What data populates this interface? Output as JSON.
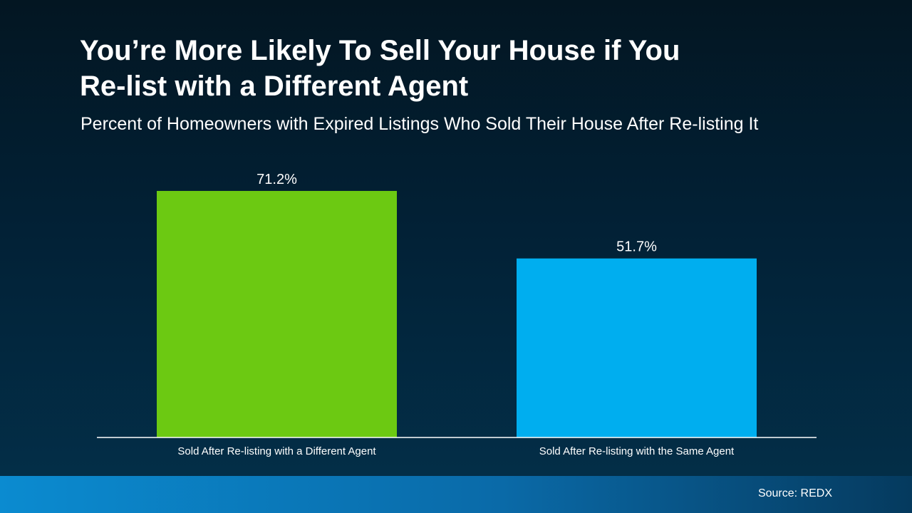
{
  "title_line1": "You’re More Likely To Sell Your House if You",
  "title_line2": "Re-list with a Different Agent",
  "subtitle": "Percent of Homeowners with Expired Listings Who Sold Their House After Re-listing It",
  "source": "Source: REDX",
  "colors": {
    "background_top": "#031622",
    "background_bottom": "#03304a",
    "footer_left": "#0b8bd0",
    "footer_right": "#053a5e",
    "axis": "#ffffff"
  },
  "chart_data": {
    "type": "bar",
    "categories": [
      "Sold After Re-listing with a Different Agent",
      "Sold After Re-listing with the Same Agent"
    ],
    "values": [
      71.2,
      51.7
    ],
    "value_labels": [
      "71.2%",
      "51.7%"
    ],
    "bar_colors": [
      "#6cc912",
      "#00aeef"
    ],
    "ylim": [
      0,
      100
    ],
    "grid": false,
    "legend": "none"
  }
}
